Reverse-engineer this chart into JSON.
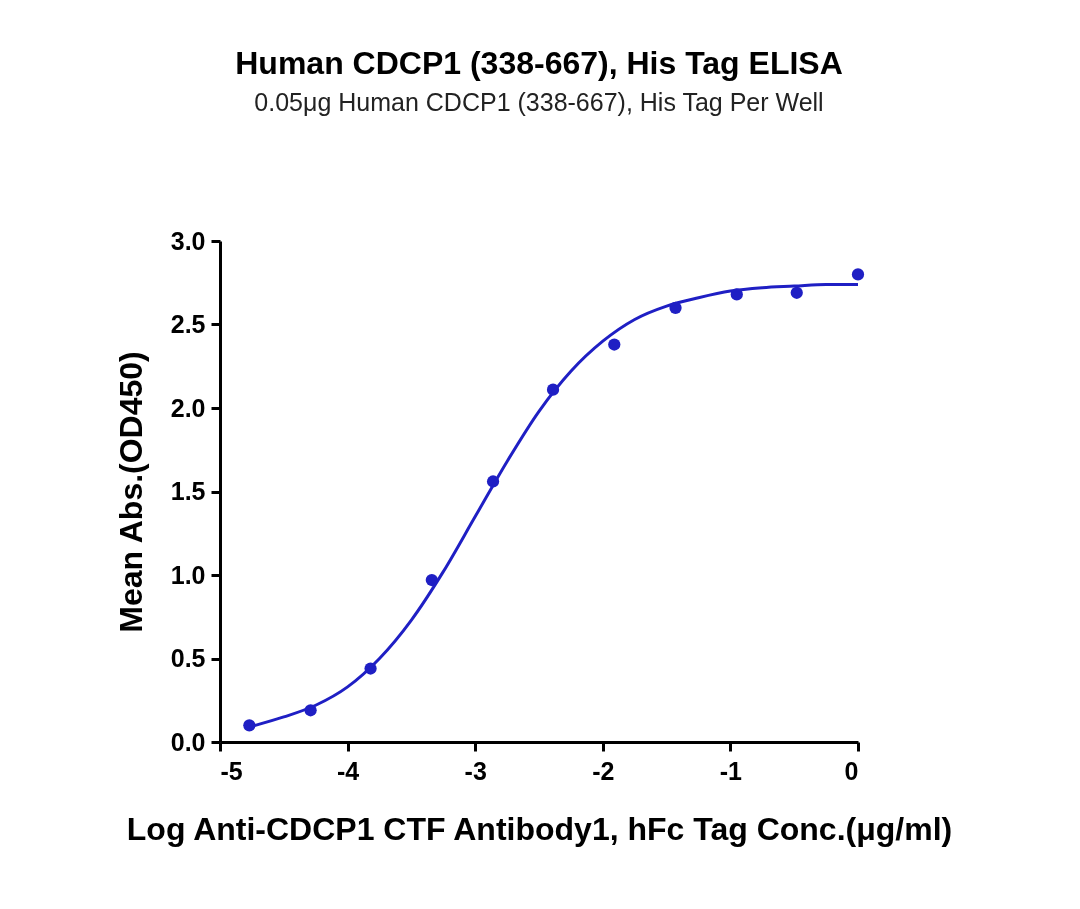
{
  "chart_data": {
    "type": "scatter",
    "title": "Human CDCP1 (338-667), His Tag ELISA",
    "subtitle": "0.05μg Human CDCP1 (338-667), His Tag Per Well",
    "xlabel": "Log Anti-CDCP1 CTF Antibody1, hFc Tag Conc.(μg/ml)",
    "ylabel": "Mean Abs.(OD450)",
    "xlim": [
      -5,
      0
    ],
    "xticks": [
      -5,
      -4,
      -3,
      -2,
      -1,
      0
    ],
    "ylim": [
      0,
      3
    ],
    "yticks": [
      {
        "value": 0,
        "label": "0.0"
      },
      {
        "value": 0.5,
        "label": "0.5"
      },
      {
        "value": 1,
        "label": "1.0"
      },
      {
        "value": 1.5,
        "label": "1.5"
      },
      {
        "value": 2,
        "label": "2.0"
      },
      {
        "value": 2.5,
        "label": "2.5"
      },
      {
        "value": 3,
        "label": "3.0"
      }
    ],
    "grid": false,
    "series": [
      {
        "color": "#1f1fc4",
        "marker": "circle",
        "x": [
          -4.77,
          -4.29,
          -3.82,
          -3.34,
          -2.86,
          -2.39,
          -1.91,
          -1.43,
          -0.95,
          -0.48,
          0
        ],
        "values": [
          0.1,
          0.19,
          0.44,
          0.97,
          1.56,
          2.11,
          2.38,
          2.6,
          2.68,
          2.69,
          2.8
        ]
      },
      {
        "type": "line",
        "color": "#1f1fc4",
        "line_style": "solid",
        "x": [
          -4.77,
          -4.5,
          -4.25,
          -4,
          -3.75,
          -3.5,
          -3.25,
          -3,
          -2.75,
          -2.5,
          -2.25,
          -2,
          -1.75,
          -1.5,
          -1.25,
          -1,
          -0.75,
          -0.5,
          -0.25,
          0
        ],
        "values": [
          0.09,
          0.15,
          0.22,
          0.33,
          0.5,
          0.73,
          1.02,
          1.35,
          1.68,
          1.98,
          2.22,
          2.4,
          2.53,
          2.61,
          2.66,
          2.7,
          2.72,
          2.73,
          2.74,
          2.74
        ]
      }
    ]
  }
}
